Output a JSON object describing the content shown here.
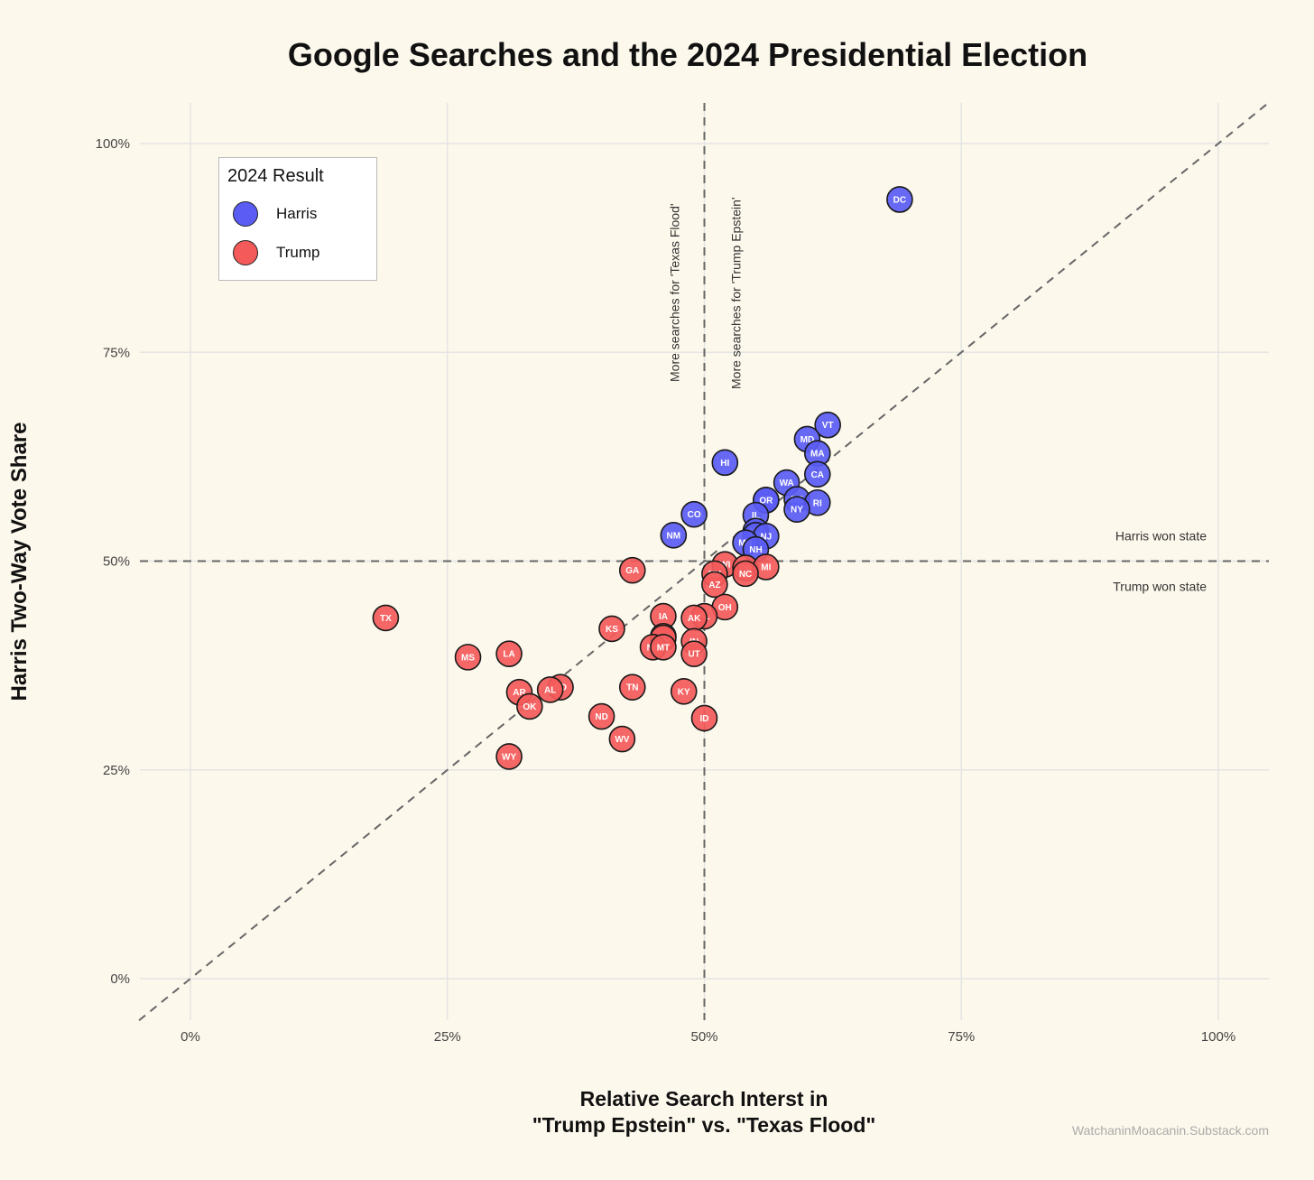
{
  "chart_data": {
    "type": "scatter",
    "title": "Google Searches and the 2024 Presidential Election",
    "xlabel_lines": [
      "Relative Search Interst in",
      "\"Trump Epstein\" vs. \"Texas Flood\""
    ],
    "ylabel": "Harris Two-Way Vote Share",
    "credit": "WatchaninMoacanin.Substack.com",
    "xlim": [
      -0.05,
      1.05
    ],
    "ylim": [
      -0.05,
      1.05
    ],
    "x_ticks": [
      0,
      0.25,
      0.5,
      0.75,
      1.0
    ],
    "x_tick_labels": [
      "0%",
      "25%",
      "50%",
      "75%",
      "100%"
    ],
    "y_ticks": [
      0,
      0.25,
      0.5,
      0.75,
      1.0
    ],
    "y_tick_labels": [
      "0%",
      "25%",
      "50%",
      "75%",
      "100%"
    ],
    "grid": true,
    "reference_lines": {
      "vertical": 0.5,
      "horizontal": 0.5,
      "diagonal": "y = x"
    },
    "annotations": {
      "texas_flood": "More searches for 'Texas Flood'",
      "trump_epstein": "More searches for 'Trump Epstein'",
      "harris_won": "Harris won state",
      "trump_won": "Trump won state"
    },
    "legend": {
      "title": "2024 Result",
      "position": "top-left",
      "items": [
        {
          "label": "Harris",
          "color": "#5a5cf4"
        },
        {
          "label": "Trump",
          "color": "#f45a5a"
        }
      ]
    },
    "series": [
      {
        "name": "Harris",
        "color": "#5a5cf4",
        "points": [
          {
            "state": "DC",
            "x": 0.69,
            "y": 0.933
          },
          {
            "state": "VT",
            "x": 0.62,
            "y": 0.663
          },
          {
            "state": "MD",
            "x": 0.6,
            "y": 0.646
          },
          {
            "state": "MA",
            "x": 0.61,
            "y": 0.629
          },
          {
            "state": "HI",
            "x": 0.52,
            "y": 0.618
          },
          {
            "state": "CA",
            "x": 0.61,
            "y": 0.604
          },
          {
            "state": "WA",
            "x": 0.58,
            "y": 0.594
          },
          {
            "state": "CT",
            "x": 0.56,
            "y": 0.573
          },
          {
            "state": "OR",
            "x": 0.56,
            "y": 0.573
          },
          {
            "state": "DE",
            "x": 0.59,
            "y": 0.574
          },
          {
            "state": "RI",
            "x": 0.61,
            "y": 0.57
          },
          {
            "state": "NY",
            "x": 0.59,
            "y": 0.562
          },
          {
            "state": "CO",
            "x": 0.49,
            "y": 0.556
          },
          {
            "state": "IL",
            "x": 0.55,
            "y": 0.555
          },
          {
            "state": "NM",
            "x": 0.47,
            "y": 0.531
          },
          {
            "state": "ME",
            "x": 0.55,
            "y": 0.536
          },
          {
            "state": "VA",
            "x": 0.55,
            "y": 0.531
          },
          {
            "state": "NJ",
            "x": 0.56,
            "y": 0.53
          },
          {
            "state": "MN",
            "x": 0.54,
            "y": 0.522
          },
          {
            "state": "NH",
            "x": 0.55,
            "y": 0.514
          }
        ]
      },
      {
        "name": "Trump",
        "color": "#f45a5a",
        "points": [
          {
            "state": "WI",
            "x": 0.52,
            "y": 0.496
          },
          {
            "state": "PA",
            "x": 0.54,
            "y": 0.492
          },
          {
            "state": "MI",
            "x": 0.56,
            "y": 0.493
          },
          {
            "state": "GA",
            "x": 0.43,
            "y": 0.489
          },
          {
            "state": "NV",
            "x": 0.51,
            "y": 0.485
          },
          {
            "state": "NC",
            "x": 0.54,
            "y": 0.485
          },
          {
            "state": "AZ",
            "x": 0.51,
            "y": 0.472
          },
          {
            "state": "OH",
            "x": 0.52,
            "y": 0.445
          },
          {
            "state": "FL",
            "x": 0.5,
            "y": 0.434
          },
          {
            "state": "IA",
            "x": 0.46,
            "y": 0.434
          },
          {
            "state": "AK",
            "x": 0.49,
            "y": 0.432
          },
          {
            "state": "TX",
            "x": 0.19,
            "y": 0.432
          },
          {
            "state": "KS",
            "x": 0.41,
            "y": 0.419
          },
          {
            "state": "SC",
            "x": 0.46,
            "y": 0.41
          },
          {
            "state": "MO",
            "x": 0.46,
            "y": 0.408
          },
          {
            "state": "IN",
            "x": 0.49,
            "y": 0.404
          },
          {
            "state": "NE",
            "x": 0.45,
            "y": 0.397
          },
          {
            "state": "MT",
            "x": 0.46,
            "y": 0.397
          },
          {
            "state": "UT",
            "x": 0.49,
            "y": 0.389
          },
          {
            "state": "LA",
            "x": 0.31,
            "y": 0.389
          },
          {
            "state": "MS",
            "x": 0.27,
            "y": 0.385
          },
          {
            "state": "TN",
            "x": 0.43,
            "y": 0.349
          },
          {
            "state": "SD",
            "x": 0.36,
            "y": 0.349
          },
          {
            "state": "AL",
            "x": 0.35,
            "y": 0.346
          },
          {
            "state": "KY",
            "x": 0.48,
            "y": 0.344
          },
          {
            "state": "AR",
            "x": 0.32,
            "y": 0.343
          },
          {
            "state": "OK",
            "x": 0.33,
            "y": 0.326
          },
          {
            "state": "ND",
            "x": 0.4,
            "y": 0.314
          },
          {
            "state": "ID",
            "x": 0.5,
            "y": 0.312
          },
          {
            "state": "WV",
            "x": 0.42,
            "y": 0.287
          },
          {
            "state": "WY",
            "x": 0.31,
            "y": 0.266
          }
        ]
      }
    ]
  }
}
